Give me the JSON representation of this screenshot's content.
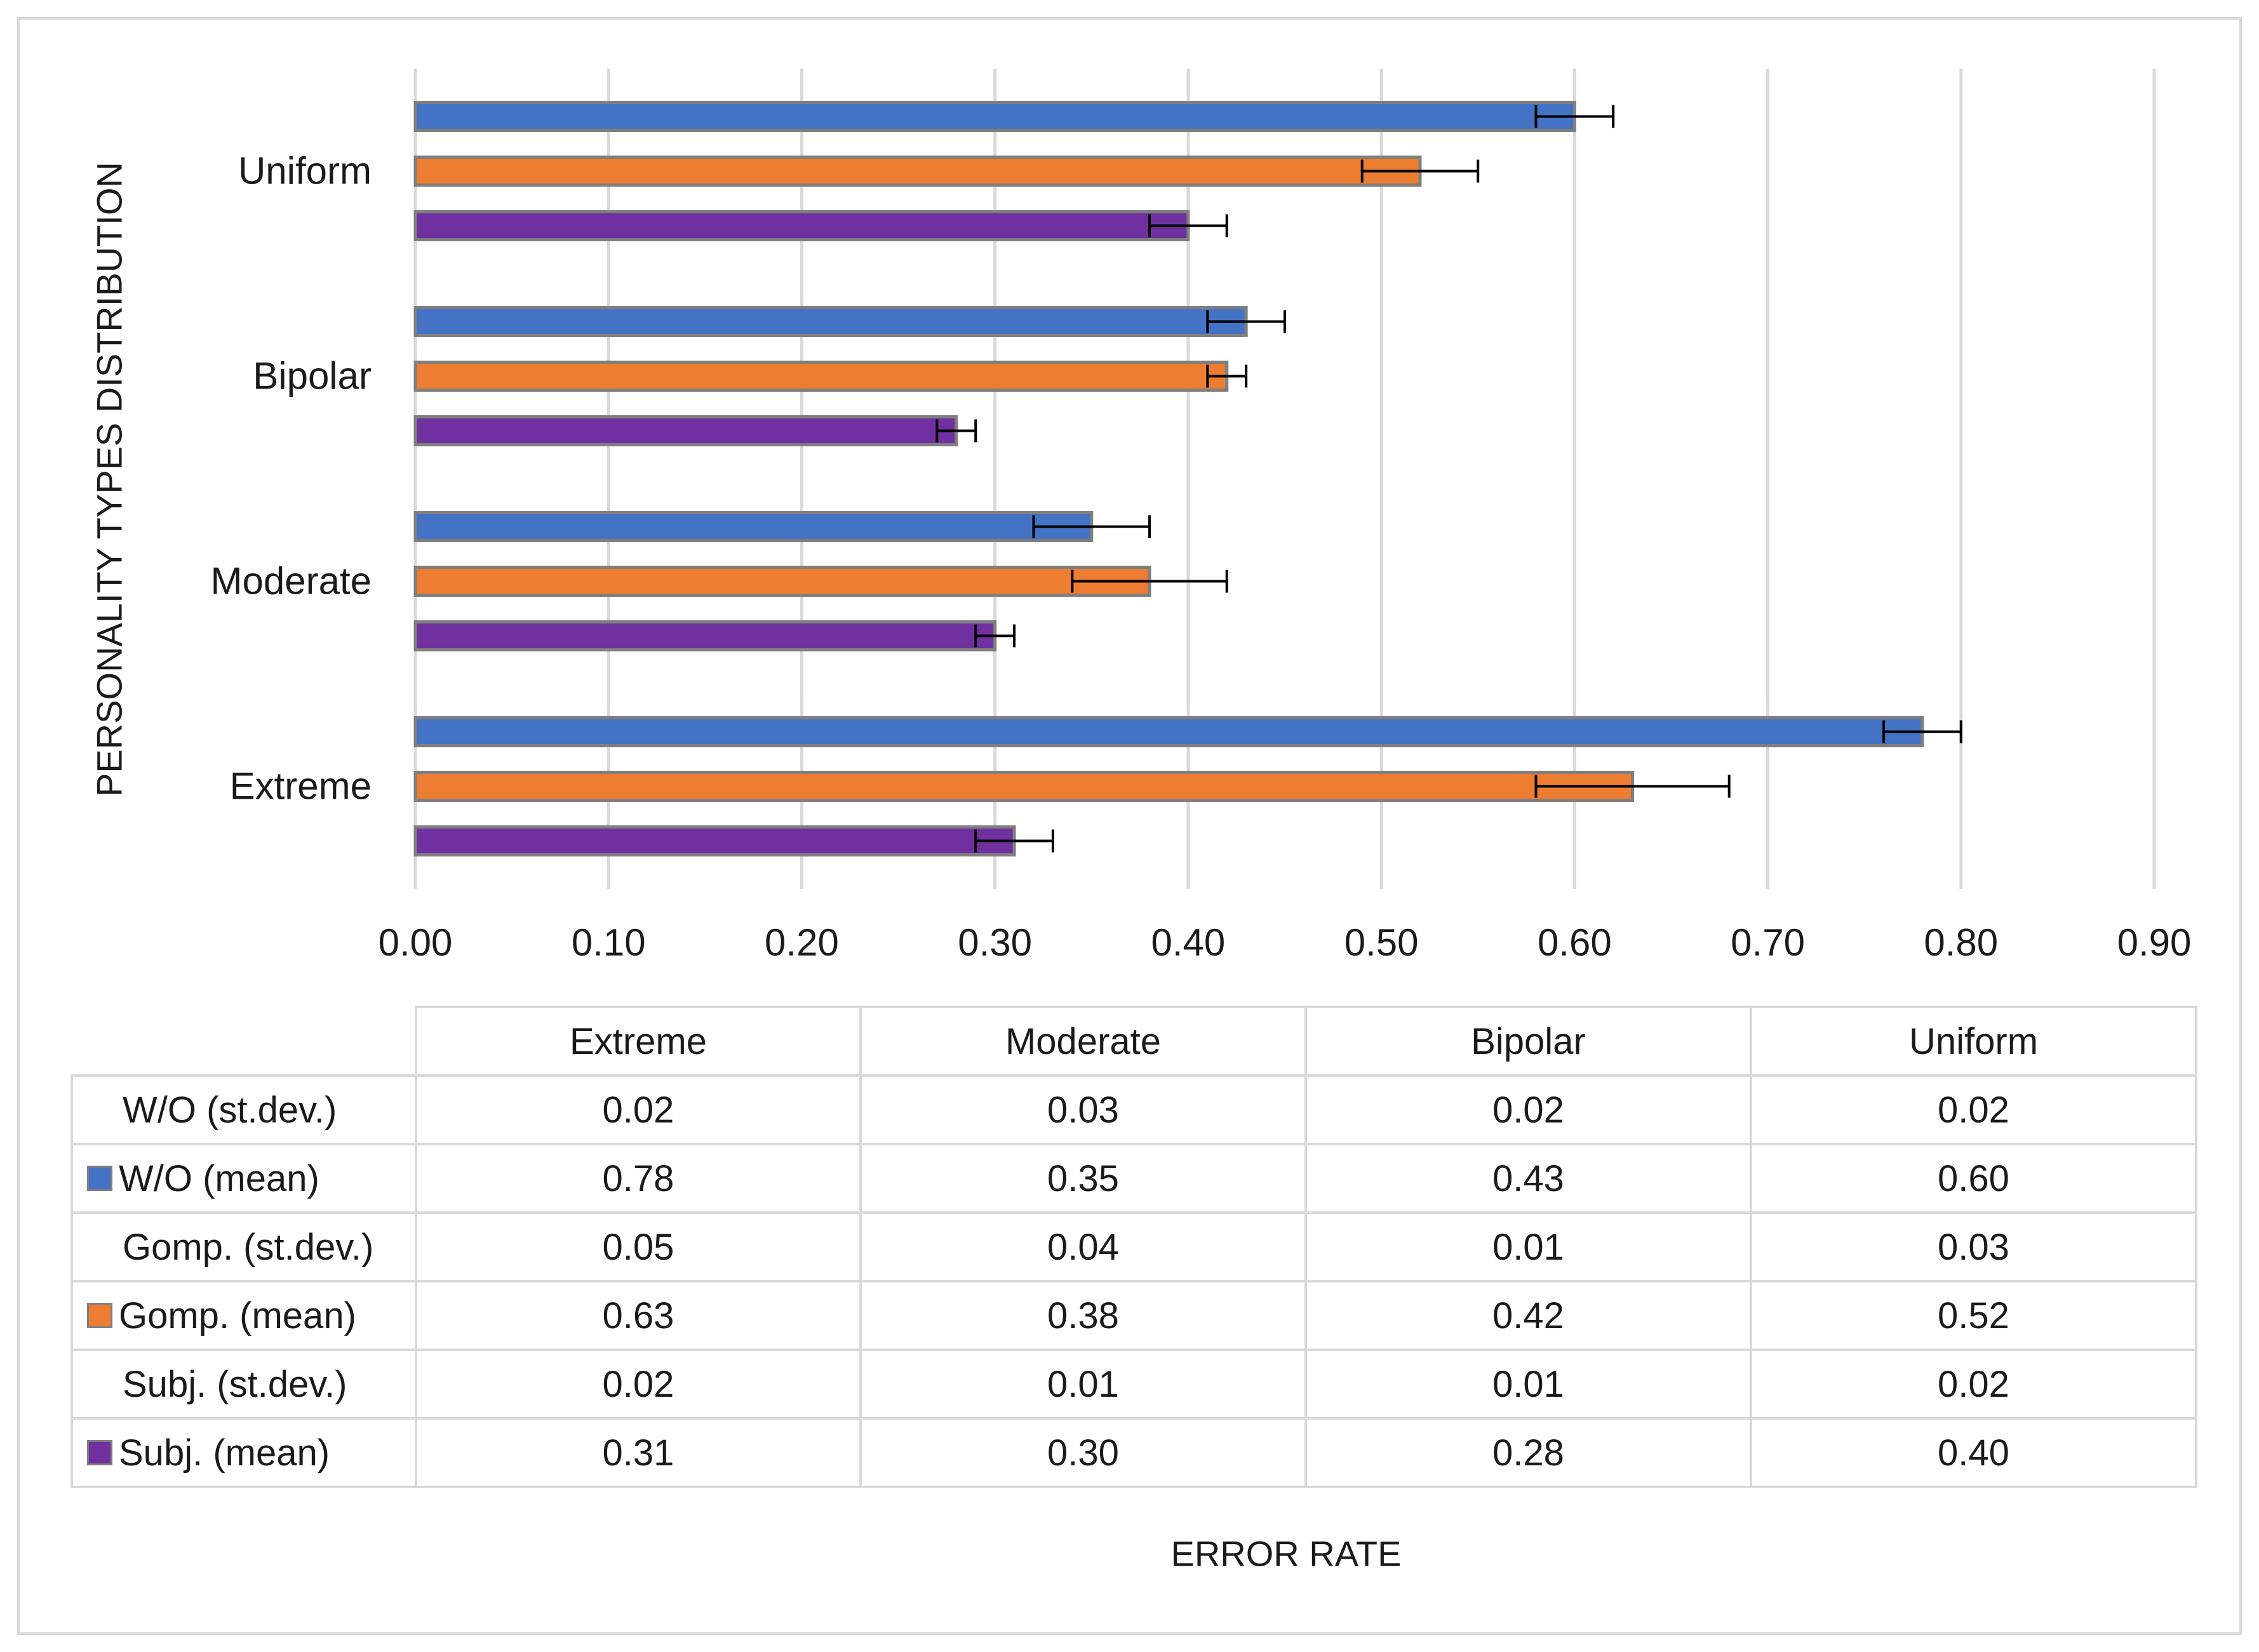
{
  "chart_data": {
    "type": "bar",
    "orientation": "horizontal",
    "ylabel": "PERSONALITY TYPES DISTRIBUTION",
    "xlabel": "ERROR RATE",
    "categories": [
      "Extreme",
      "Moderate",
      "Bipolar",
      "Uniform"
    ],
    "xlim": [
      0,
      0.9
    ],
    "xticks": [
      "0.00",
      "0.10",
      "0.20",
      "0.30",
      "0.40",
      "0.50",
      "0.60",
      "0.70",
      "0.80",
      "0.90"
    ],
    "grid": true,
    "series": [
      {
        "name": "W/O (mean)",
        "color": "#4472c4",
        "values": [
          0.78,
          0.35,
          0.43,
          0.6
        ],
        "std": [
          0.02,
          0.03,
          0.02,
          0.02
        ]
      },
      {
        "name": "Gomp. (mean)",
        "color": "#ed7d31",
        "values": [
          0.63,
          0.38,
          0.42,
          0.52
        ],
        "std": [
          0.05,
          0.04,
          0.01,
          0.03
        ]
      },
      {
        "name": "Subj. (mean)",
        "color": "#7030a0",
        "values": [
          0.31,
          0.3,
          0.28,
          0.4
        ],
        "std": [
          0.02,
          0.01,
          0.01,
          0.02
        ]
      }
    ],
    "table": {
      "columns": [
        "Extreme",
        "Moderate",
        "Bipolar",
        "Uniform"
      ],
      "rows": [
        {
          "label": "W/O (st.dev.)",
          "key_color": null,
          "cells": [
            "0.02",
            "0.03",
            "0.02",
            "0.02"
          ]
        },
        {
          "label": "W/O (mean)",
          "key_color": "#4472c4",
          "cells": [
            "0.78",
            "0.35",
            "0.43",
            "0.60"
          ]
        },
        {
          "label": "Gomp. (st.dev.)",
          "key_color": null,
          "cells": [
            "0.05",
            "0.04",
            "0.01",
            "0.03"
          ]
        },
        {
          "label": "Gomp. (mean)",
          "key_color": "#ed7d31",
          "cells": [
            "0.63",
            "0.38",
            "0.42",
            "0.52"
          ]
        },
        {
          "label": "Subj. (st.dev.)",
          "key_color": null,
          "cells": [
            "0.02",
            "0.01",
            "0.01",
            "0.02"
          ]
        },
        {
          "label": "Subj. (mean)",
          "key_color": "#7030a0",
          "cells": [
            "0.31",
            "0.30",
            "0.28",
            "0.40"
          ]
        }
      ]
    }
  }
}
